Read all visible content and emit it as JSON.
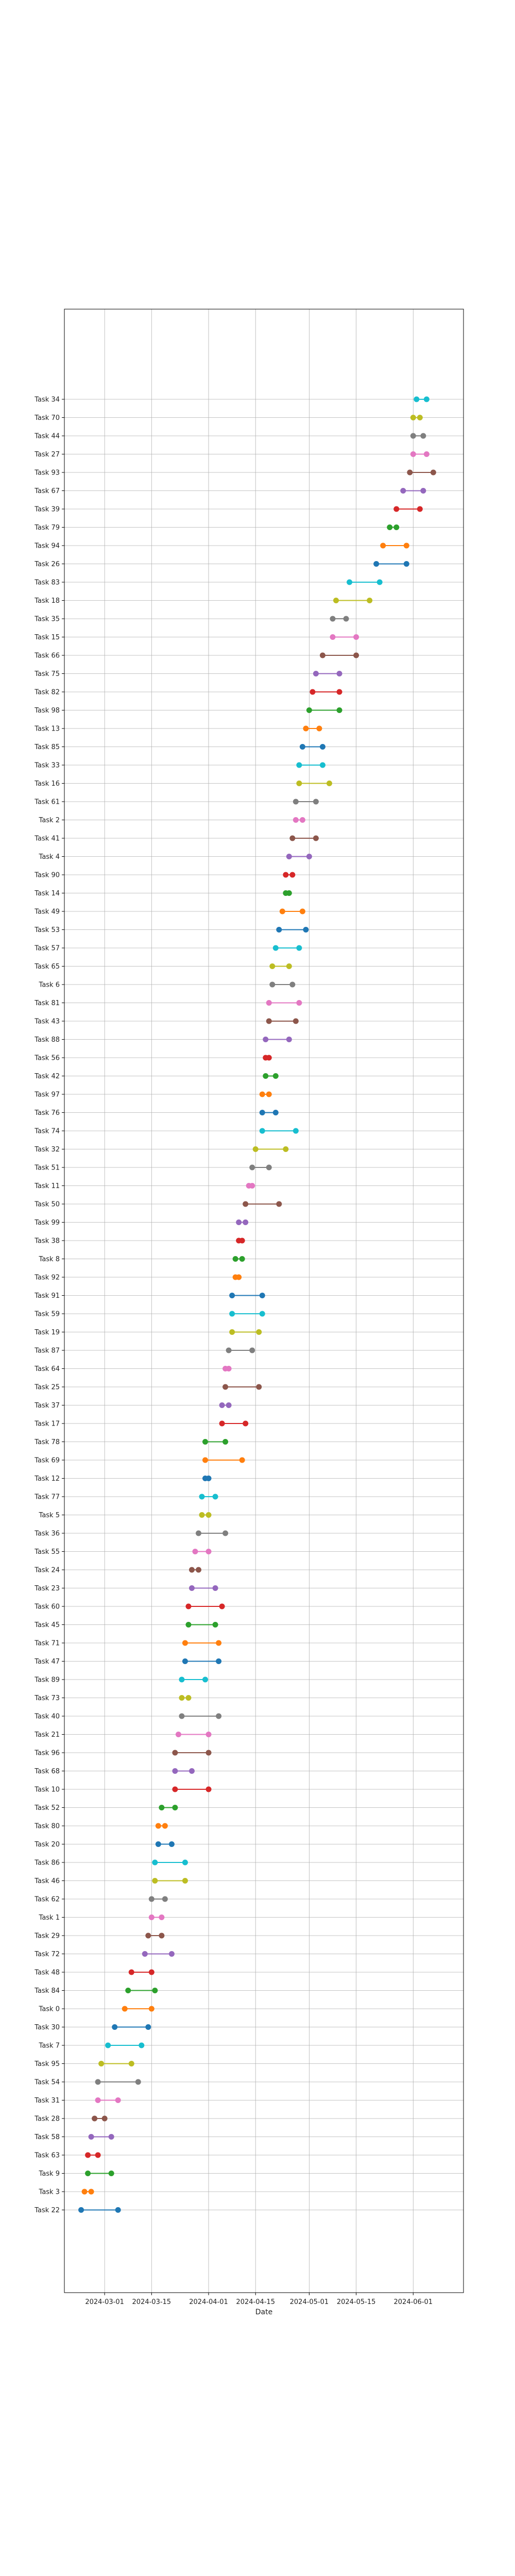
{
  "chart_data": {
    "type": "dumbbell",
    "title": "",
    "xlabel": "Date",
    "ylabel": "",
    "grid": true,
    "x_ticks": [
      "2024-03-01",
      "2024-03-15",
      "2024-04-01",
      "2024-04-15",
      "2024-05-01",
      "2024-05-15",
      "2024-06-01"
    ],
    "xlim": [
      "2024-02-18",
      "2024-06-16"
    ],
    "palette": [
      "#1f77b4",
      "#ff7f0e",
      "#2ca02c",
      "#d62728",
      "#9467bd",
      "#8c564b",
      "#e377c2",
      "#7f7f7f",
      "#bcbd22",
      "#17becf"
    ],
    "tasks": [
      {
        "name": "Task 22",
        "start": "2024-02-23",
        "end": "2024-03-05",
        "color": "#1f77b4"
      },
      {
        "name": "Task 3",
        "start": "2024-02-24",
        "end": "2024-02-26",
        "color": "#ff7f0e"
      },
      {
        "name": "Task 9",
        "start": "2024-02-25",
        "end": "2024-03-03",
        "color": "#2ca02c"
      },
      {
        "name": "Task 63",
        "start": "2024-02-25",
        "end": "2024-02-28",
        "color": "#d62728"
      },
      {
        "name": "Task 58",
        "start": "2024-02-26",
        "end": "2024-03-03",
        "color": "#9467bd"
      },
      {
        "name": "Task 28",
        "start": "2024-02-27",
        "end": "2024-03-01",
        "color": "#8c564b"
      },
      {
        "name": "Task 31",
        "start": "2024-02-28",
        "end": "2024-03-05",
        "color": "#e377c2"
      },
      {
        "name": "Task 54",
        "start": "2024-02-28",
        "end": "2024-03-11",
        "color": "#7f7f7f"
      },
      {
        "name": "Task 95",
        "start": "2024-02-29",
        "end": "2024-03-09",
        "color": "#bcbd22"
      },
      {
        "name": "Task 7",
        "start": "2024-03-02",
        "end": "2024-03-12",
        "color": "#17becf"
      },
      {
        "name": "Task 30",
        "start": "2024-03-04",
        "end": "2024-03-14",
        "color": "#1f77b4"
      },
      {
        "name": "Task 0",
        "start": "2024-03-07",
        "end": "2024-03-15",
        "color": "#ff7f0e"
      },
      {
        "name": "Task 84",
        "start": "2024-03-08",
        "end": "2024-03-16",
        "color": "#2ca02c"
      },
      {
        "name": "Task 48",
        "start": "2024-03-09",
        "end": "2024-03-15",
        "color": "#d62728"
      },
      {
        "name": "Task 72",
        "start": "2024-03-13",
        "end": "2024-03-21",
        "color": "#9467bd"
      },
      {
        "name": "Task 29",
        "start": "2024-03-14",
        "end": "2024-03-18",
        "color": "#8c564b"
      },
      {
        "name": "Task 1",
        "start": "2024-03-15",
        "end": "2024-03-18",
        "color": "#e377c2"
      },
      {
        "name": "Task 62",
        "start": "2024-03-15",
        "end": "2024-03-19",
        "color": "#7f7f7f"
      },
      {
        "name": "Task 46",
        "start": "2024-03-16",
        "end": "2024-03-25",
        "color": "#bcbd22"
      },
      {
        "name": "Task 86",
        "start": "2024-03-16",
        "end": "2024-03-25",
        "color": "#17becf"
      },
      {
        "name": "Task 20",
        "start": "2024-03-17",
        "end": "2024-03-21",
        "color": "#1f77b4"
      },
      {
        "name": "Task 80",
        "start": "2024-03-17",
        "end": "2024-03-19",
        "color": "#ff7f0e"
      },
      {
        "name": "Task 52",
        "start": "2024-03-18",
        "end": "2024-03-22",
        "color": "#2ca02c"
      },
      {
        "name": "Task 10",
        "start": "2024-03-22",
        "end": "2024-04-01",
        "color": "#d62728"
      },
      {
        "name": "Task 68",
        "start": "2024-03-22",
        "end": "2024-03-27",
        "color": "#9467bd"
      },
      {
        "name": "Task 96",
        "start": "2024-03-22",
        "end": "2024-04-01",
        "color": "#8c564b"
      },
      {
        "name": "Task 21",
        "start": "2024-03-23",
        "end": "2024-04-01",
        "color": "#e377c2"
      },
      {
        "name": "Task 40",
        "start": "2024-03-24",
        "end": "2024-04-04",
        "color": "#7f7f7f"
      },
      {
        "name": "Task 73",
        "start": "2024-03-24",
        "end": "2024-03-26",
        "color": "#bcbd22"
      },
      {
        "name": "Task 89",
        "start": "2024-03-24",
        "end": "2024-03-31",
        "color": "#17becf"
      },
      {
        "name": "Task 47",
        "start": "2024-03-25",
        "end": "2024-04-04",
        "color": "#1f77b4"
      },
      {
        "name": "Task 71",
        "start": "2024-03-25",
        "end": "2024-04-04",
        "color": "#ff7f0e"
      },
      {
        "name": "Task 45",
        "start": "2024-03-26",
        "end": "2024-04-03",
        "color": "#2ca02c"
      },
      {
        "name": "Task 60",
        "start": "2024-03-26",
        "end": "2024-04-05",
        "color": "#d62728"
      },
      {
        "name": "Task 23",
        "start": "2024-03-27",
        "end": "2024-04-03",
        "color": "#9467bd"
      },
      {
        "name": "Task 24",
        "start": "2024-03-27",
        "end": "2024-03-29",
        "color": "#8c564b"
      },
      {
        "name": "Task 55",
        "start": "2024-03-28",
        "end": "2024-04-01",
        "color": "#e377c2"
      },
      {
        "name": "Task 36",
        "start": "2024-03-29",
        "end": "2024-04-06",
        "color": "#7f7f7f"
      },
      {
        "name": "Task 5",
        "start": "2024-03-30",
        "end": "2024-04-01",
        "color": "#bcbd22"
      },
      {
        "name": "Task 77",
        "start": "2024-03-30",
        "end": "2024-04-03",
        "color": "#17becf"
      },
      {
        "name": "Task 12",
        "start": "2024-03-31",
        "end": "2024-04-01",
        "color": "#1f77b4"
      },
      {
        "name": "Task 69",
        "start": "2024-03-31",
        "end": "2024-04-11",
        "color": "#ff7f0e"
      },
      {
        "name": "Task 78",
        "start": "2024-03-31",
        "end": "2024-04-06",
        "color": "#2ca02c"
      },
      {
        "name": "Task 17",
        "start": "2024-04-05",
        "end": "2024-04-12",
        "color": "#d62728"
      },
      {
        "name": "Task 37",
        "start": "2024-04-05",
        "end": "2024-04-07",
        "color": "#9467bd"
      },
      {
        "name": "Task 25",
        "start": "2024-04-06",
        "end": "2024-04-16",
        "color": "#8c564b"
      },
      {
        "name": "Task 64",
        "start": "2024-04-06",
        "end": "2024-04-07",
        "color": "#e377c2"
      },
      {
        "name": "Task 87",
        "start": "2024-04-07",
        "end": "2024-04-14",
        "color": "#7f7f7f"
      },
      {
        "name": "Task 19",
        "start": "2024-04-08",
        "end": "2024-04-16",
        "color": "#bcbd22"
      },
      {
        "name": "Task 59",
        "start": "2024-04-08",
        "end": "2024-04-17",
        "color": "#17becf"
      },
      {
        "name": "Task 91",
        "start": "2024-04-08",
        "end": "2024-04-17",
        "color": "#1f77b4"
      },
      {
        "name": "Task 92",
        "start": "2024-04-09",
        "end": "2024-04-10",
        "color": "#ff7f0e"
      },
      {
        "name": "Task 8",
        "start": "2024-04-09",
        "end": "2024-04-11",
        "color": "#2ca02c"
      },
      {
        "name": "Task 38",
        "start": "2024-04-10",
        "end": "2024-04-11",
        "color": "#d62728"
      },
      {
        "name": "Task 99",
        "start": "2024-04-10",
        "end": "2024-04-12",
        "color": "#9467bd"
      },
      {
        "name": "Task 50",
        "start": "2024-04-12",
        "end": "2024-04-22",
        "color": "#8c564b"
      },
      {
        "name": "Task 11",
        "start": "2024-04-13",
        "end": "2024-04-14",
        "color": "#e377c2"
      },
      {
        "name": "Task 51",
        "start": "2024-04-14",
        "end": "2024-04-19",
        "color": "#7f7f7f"
      },
      {
        "name": "Task 32",
        "start": "2024-04-15",
        "end": "2024-04-24",
        "color": "#bcbd22"
      },
      {
        "name": "Task 74",
        "start": "2024-04-17",
        "end": "2024-04-27",
        "color": "#17becf"
      },
      {
        "name": "Task 76",
        "start": "2024-04-17",
        "end": "2024-04-21",
        "color": "#1f77b4"
      },
      {
        "name": "Task 97",
        "start": "2024-04-17",
        "end": "2024-04-19",
        "color": "#ff7f0e"
      },
      {
        "name": "Task 42",
        "start": "2024-04-18",
        "end": "2024-04-21",
        "color": "#2ca02c"
      },
      {
        "name": "Task 56",
        "start": "2024-04-18",
        "end": "2024-04-19",
        "color": "#d62728"
      },
      {
        "name": "Task 88",
        "start": "2024-04-18",
        "end": "2024-04-25",
        "color": "#9467bd"
      },
      {
        "name": "Task 43",
        "start": "2024-04-19",
        "end": "2024-04-27",
        "color": "#8c564b"
      },
      {
        "name": "Task 81",
        "start": "2024-04-19",
        "end": "2024-04-28",
        "color": "#e377c2"
      },
      {
        "name": "Task 6",
        "start": "2024-04-20",
        "end": "2024-04-26",
        "color": "#7f7f7f"
      },
      {
        "name": "Task 65",
        "start": "2024-04-20",
        "end": "2024-04-25",
        "color": "#bcbd22"
      },
      {
        "name": "Task 57",
        "start": "2024-04-21",
        "end": "2024-04-28",
        "color": "#17becf"
      },
      {
        "name": "Task 53",
        "start": "2024-04-22",
        "end": "2024-04-30",
        "color": "#1f77b4"
      },
      {
        "name": "Task 49",
        "start": "2024-04-23",
        "end": "2024-04-29",
        "color": "#ff7f0e"
      },
      {
        "name": "Task 14",
        "start": "2024-04-24",
        "end": "2024-04-25",
        "color": "#2ca02c"
      },
      {
        "name": "Task 90",
        "start": "2024-04-24",
        "end": "2024-04-26",
        "color": "#d62728"
      },
      {
        "name": "Task 4",
        "start": "2024-04-25",
        "end": "2024-05-01",
        "color": "#9467bd"
      },
      {
        "name": "Task 41",
        "start": "2024-04-26",
        "end": "2024-05-03",
        "color": "#8c564b"
      },
      {
        "name": "Task 2",
        "start": "2024-04-27",
        "end": "2024-04-29",
        "color": "#e377c2"
      },
      {
        "name": "Task 61",
        "start": "2024-04-27",
        "end": "2024-05-03",
        "color": "#7f7f7f"
      },
      {
        "name": "Task 16",
        "start": "2024-04-28",
        "end": "2024-05-07",
        "color": "#bcbd22"
      },
      {
        "name": "Task 33",
        "start": "2024-04-28",
        "end": "2024-05-05",
        "color": "#17becf"
      },
      {
        "name": "Task 85",
        "start": "2024-04-29",
        "end": "2024-05-05",
        "color": "#1f77b4"
      },
      {
        "name": "Task 13",
        "start": "2024-04-30",
        "end": "2024-05-04",
        "color": "#ff7f0e"
      },
      {
        "name": "Task 98",
        "start": "2024-05-01",
        "end": "2024-05-10",
        "color": "#2ca02c"
      },
      {
        "name": "Task 82",
        "start": "2024-05-02",
        "end": "2024-05-10",
        "color": "#d62728"
      },
      {
        "name": "Task 75",
        "start": "2024-05-03",
        "end": "2024-05-10",
        "color": "#9467bd"
      },
      {
        "name": "Task 66",
        "start": "2024-05-05",
        "end": "2024-05-15",
        "color": "#8c564b"
      },
      {
        "name": "Task 15",
        "start": "2024-05-08",
        "end": "2024-05-15",
        "color": "#e377c2"
      },
      {
        "name": "Task 35",
        "start": "2024-05-08",
        "end": "2024-05-12",
        "color": "#7f7f7f"
      },
      {
        "name": "Task 18",
        "start": "2024-05-09",
        "end": "2024-05-19",
        "color": "#bcbd22"
      },
      {
        "name": "Task 83",
        "start": "2024-05-13",
        "end": "2024-05-22",
        "color": "#17becf"
      },
      {
        "name": "Task 26",
        "start": "2024-05-21",
        "end": "2024-05-30",
        "color": "#1f77b4"
      },
      {
        "name": "Task 94",
        "start": "2024-05-23",
        "end": "2024-05-30",
        "color": "#ff7f0e"
      },
      {
        "name": "Task 79",
        "start": "2024-05-25",
        "end": "2024-05-27",
        "color": "#2ca02c"
      },
      {
        "name": "Task 39",
        "start": "2024-05-27",
        "end": "2024-06-03",
        "color": "#d62728"
      },
      {
        "name": "Task 67",
        "start": "2024-05-29",
        "end": "2024-06-04",
        "color": "#9467bd"
      },
      {
        "name": "Task 93",
        "start": "2024-05-31",
        "end": "2024-06-07",
        "color": "#8c564b"
      },
      {
        "name": "Task 27",
        "start": "2024-06-01",
        "end": "2024-06-05",
        "color": "#e377c2"
      },
      {
        "name": "Task 44",
        "start": "2024-06-01",
        "end": "2024-06-04",
        "color": "#7f7f7f"
      },
      {
        "name": "Task 70",
        "start": "2024-06-01",
        "end": "2024-06-03",
        "color": "#bcbd22"
      },
      {
        "name": "Task 34",
        "start": "2024-06-02",
        "end": "2024-06-05",
        "color": "#17becf"
      }
    ]
  }
}
